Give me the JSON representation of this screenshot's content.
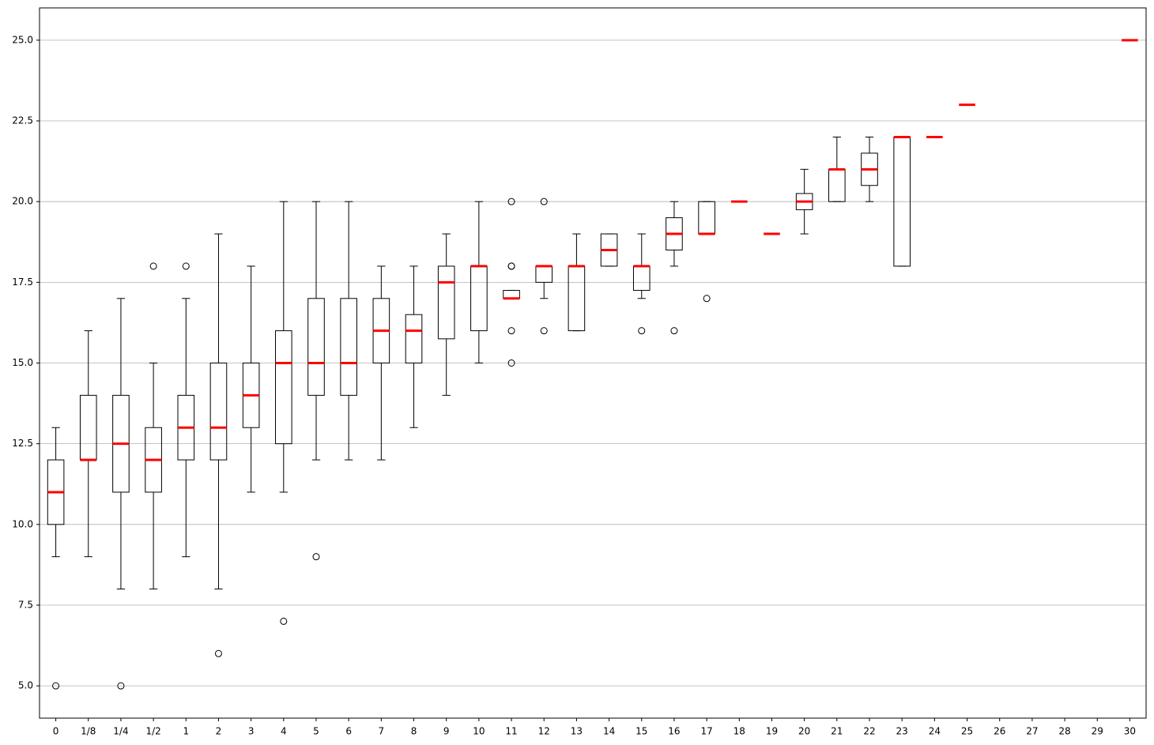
{
  "chart_data": {
    "type": "box",
    "categories": [
      "0",
      "1/8",
      "1/4",
      "1/2",
      "1",
      "2",
      "3",
      "4",
      "5",
      "6",
      "7",
      "8",
      "9",
      "10",
      "11",
      "12",
      "13",
      "14",
      "15",
      "16",
      "17",
      "18",
      "19",
      "20",
      "21",
      "22",
      "23",
      "24",
      "25",
      "26",
      "27",
      "28",
      "29",
      "30"
    ],
    "whislo": [
      9,
      9,
      8,
      8,
      9,
      8,
      11,
      11,
      12,
      12,
      12,
      13,
      14,
      15,
      17,
      17,
      16,
      18,
      17,
      18,
      19,
      20,
      19,
      19,
      20,
      20,
      18,
      22,
      23,
      null,
      null,
      null,
      null,
      25
    ],
    "q1": [
      10,
      12,
      11,
      11,
      12,
      12,
      13,
      12.5,
      14,
      14,
      15,
      15,
      15.75,
      16,
      17,
      17.5,
      16,
      18,
      17.25,
      18.5,
      19,
      20,
      19,
      19.75,
      20,
      20.5,
      18,
      22,
      23,
      null,
      null,
      null,
      null,
      25
    ],
    "median": [
      11,
      12,
      12.5,
      12,
      13,
      13,
      14,
      15,
      15,
      15,
      16,
      16,
      17.5,
      18,
      17,
      18,
      18,
      18.5,
      18,
      19,
      19,
      20,
      19,
      20,
      21,
      21,
      22,
      22,
      23,
      null,
      null,
      null,
      null,
      25
    ],
    "q3": [
      12,
      14,
      14,
      13,
      14,
      15,
      15,
      16,
      17,
      17,
      17,
      16.5,
      18,
      18,
      17.25,
      18,
      18,
      19,
      18,
      19.5,
      20,
      20,
      19,
      20.25,
      21,
      21.5,
      22,
      22,
      23,
      null,
      null,
      null,
      null,
      25
    ],
    "whishi": [
      13,
      16,
      17,
      15,
      17,
      19,
      18,
      20,
      20,
      20,
      18,
      18,
      19,
      20,
      17.25,
      18,
      19,
      19,
      19,
      20,
      20,
      20,
      19,
      21,
      22,
      22,
      22,
      22,
      23,
      null,
      null,
      null,
      null,
      25
    ],
    "fliers": [
      [
        5
      ],
      [],
      [
        5
      ],
      [
        18
      ],
      [
        18
      ],
      [
        6
      ],
      [],
      [
        7
      ],
      [
        9
      ],
      [],
      [],
      [],
      [],
      [],
      [
        20,
        18,
        18,
        16,
        15
      ],
      [
        20,
        16
      ],
      [],
      [],
      [
        16
      ],
      [
        16
      ],
      [
        17
      ],
      [],
      [],
      [],
      [],
      [],
      [],
      [],
      [],
      null,
      null,
      null,
      null,
      []
    ],
    "box_color": "#000000",
    "median_color": "#ff0000",
    "grid_color": "#b0b0b0",
    "ylim": [
      4,
      26
    ],
    "yticks": [
      {
        "value": 5,
        "label": "5.0"
      },
      {
        "value": 7.5,
        "label": "7.5"
      },
      {
        "value": 10,
        "label": "10.0"
      },
      {
        "value": 12.5,
        "label": "12.5"
      },
      {
        "value": 15,
        "label": "15.0"
      },
      {
        "value": 17.5,
        "label": "17.5"
      },
      {
        "value": 20,
        "label": "20.0"
      },
      {
        "value": 22.5,
        "label": "22.5"
      },
      {
        "value": 25,
        "label": "25.0"
      }
    ],
    "grid": true
  }
}
